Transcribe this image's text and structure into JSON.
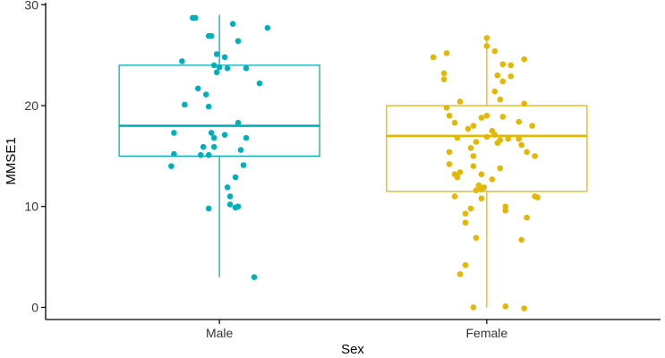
{
  "chart_data": {
    "type": "boxplot",
    "title": "",
    "xlabel": "Sex",
    "ylabel": "MMSE1",
    "ylim": [
      -1.2,
      30.2
    ],
    "yticks": [
      0,
      10,
      20,
      30
    ],
    "grid": false,
    "legend": "none",
    "categories": [
      "Male",
      "Female"
    ],
    "colors": [
      "#00b0bd",
      "#e6b700"
    ],
    "groups": [
      {
        "name": "Male",
        "whisker_low": 3,
        "q1": 15,
        "median": 18,
        "q3": 24,
        "whisker_high": 29,
        "outliers": [],
        "points": [
          {
            "dx": -0.1,
            "y": 28.7
          },
          {
            "dx": -0.09,
            "y": 28.7
          },
          {
            "dx": 0.05,
            "y": 28.1
          },
          {
            "dx": 0.18,
            "y": 27.7
          },
          {
            "dx": -0.04,
            "y": 26.9
          },
          {
            "dx": -0.03,
            "y": 26.9
          },
          {
            "dx": 0.07,
            "y": 26.4
          },
          {
            "dx": -0.14,
            "y": 24.4
          },
          {
            "dx": 0.02,
            "y": 24.8
          },
          {
            "dx": -0.02,
            "y": 24.0
          },
          {
            "dx": -0.01,
            "y": 25.1
          },
          {
            "dx": 0.0,
            "y": 23.8
          },
          {
            "dx": 0.03,
            "y": 23.7
          },
          {
            "dx": 0.1,
            "y": 23.7
          },
          {
            "dx": -0.01,
            "y": 23.3
          },
          {
            "dx": 0.15,
            "y": 22.2
          },
          {
            "dx": -0.08,
            "y": 21.7
          },
          {
            "dx": -0.05,
            "y": 21.1
          },
          {
            "dx": -0.13,
            "y": 20.1
          },
          {
            "dx": -0.04,
            "y": 19.9
          },
          {
            "dx": 0.07,
            "y": 18.3
          },
          {
            "dx": -0.17,
            "y": 17.3
          },
          {
            "dx": -0.03,
            "y": 17.3
          },
          {
            "dx": 0.02,
            "y": 17.1
          },
          {
            "dx": 0.1,
            "y": 16.8
          },
          {
            "dx": -0.02,
            "y": 16.8
          },
          {
            "dx": -0.06,
            "y": 15.9
          },
          {
            "dx": -0.02,
            "y": 15.9
          },
          {
            "dx": 0.08,
            "y": 15.6
          },
          {
            "dx": -0.17,
            "y": 15.2
          },
          {
            "dx": -0.07,
            "y": 15.1
          },
          {
            "dx": -0.04,
            "y": 15.1
          },
          {
            "dx": -0.18,
            "y": 14.0
          },
          {
            "dx": 0.09,
            "y": 14.1
          },
          {
            "dx": 0.06,
            "y": 12.9
          },
          {
            "dx": 0.03,
            "y": 11.9
          },
          {
            "dx": 0.04,
            "y": 11.0
          },
          {
            "dx": 0.04,
            "y": 10.2
          },
          {
            "dx": 0.06,
            "y": 9.9
          },
          {
            "dx": 0.07,
            "y": 10.0
          },
          {
            "dx": -0.04,
            "y": 9.8
          },
          {
            "dx": 0.13,
            "y": 3.0
          }
        ]
      },
      {
        "name": "Female",
        "whisker_low": 0,
        "q1": 11.5,
        "median": 17,
        "q3": 20,
        "whisker_high": 26.6,
        "outliers": [],
        "points": [
          {
            "dx": 0.0,
            "y": 26.7
          },
          {
            "dx": 0.0,
            "y": 25.9
          },
          {
            "dx": -0.15,
            "y": 25.2
          },
          {
            "dx": 0.03,
            "y": 25.4
          },
          {
            "dx": -0.2,
            "y": 24.8
          },
          {
            "dx": 0.14,
            "y": 24.6
          },
          {
            "dx": 0.06,
            "y": 24.1
          },
          {
            "dx": 0.09,
            "y": 24.0
          },
          {
            "dx": -0.16,
            "y": 23.2
          },
          {
            "dx": 0.04,
            "y": 23.0
          },
          {
            "dx": -0.16,
            "y": 22.6
          },
          {
            "dx": 0.06,
            "y": 22.4
          },
          {
            "dx": 0.09,
            "y": 22.9
          },
          {
            "dx": 0.03,
            "y": 21.4
          },
          {
            "dx": -0.1,
            "y": 20.4
          },
          {
            "dx": 0.05,
            "y": 20.6
          },
          {
            "dx": 0.14,
            "y": 20.2
          },
          {
            "dx": -0.15,
            "y": 19.8
          },
          {
            "dx": -0.14,
            "y": 19.0
          },
          {
            "dx": -0.02,
            "y": 18.8
          },
          {
            "dx": 0.0,
            "y": 19.0
          },
          {
            "dx": 0.06,
            "y": 18.9
          },
          {
            "dx": -0.12,
            "y": 18.3
          },
          {
            "dx": -0.05,
            "y": 18.0
          },
          {
            "dx": 0.12,
            "y": 18.4
          },
          {
            "dx": 0.17,
            "y": 18.0
          },
          {
            "dx": -0.07,
            "y": 17.7
          },
          {
            "dx": 0.02,
            "y": 17.5
          },
          {
            "dx": 0.03,
            "y": 17.1
          },
          {
            "dx": -0.11,
            "y": 16.8
          },
          {
            "dx": 0.0,
            "y": 16.9
          },
          {
            "dx": 0.05,
            "y": 16.6
          },
          {
            "dx": 0.08,
            "y": 16.7
          },
          {
            "dx": 0.12,
            "y": 16.7
          },
          {
            "dx": -0.04,
            "y": 16.4
          },
          {
            "dx": 0.04,
            "y": 16.3
          },
          {
            "dx": 0.13,
            "y": 16.1
          },
          {
            "dx": -0.06,
            "y": 15.8
          },
          {
            "dx": 0.15,
            "y": 15.4
          },
          {
            "dx": 0.18,
            "y": 15.0
          },
          {
            "dx": -0.14,
            "y": 15.4
          },
          {
            "dx": -0.05,
            "y": 15.0
          },
          {
            "dx": -0.05,
            "y": 14.0
          },
          {
            "dx": -0.14,
            "y": 14.2
          },
          {
            "dx": 0.05,
            "y": 13.8
          },
          {
            "dx": -0.1,
            "y": 13.4
          },
          {
            "dx": -0.12,
            "y": 13.2
          },
          {
            "dx": -0.02,
            "y": 13.2
          },
          {
            "dx": 0.02,
            "y": 12.7
          },
          {
            "dx": -0.11,
            "y": 12.9
          },
          {
            "dx": -0.03,
            "y": 12.1
          },
          {
            "dx": -0.02,
            "y": 11.7
          },
          {
            "dx": -0.04,
            "y": 11.6
          },
          {
            "dx": -0.01,
            "y": 11.9
          },
          {
            "dx": 0.18,
            "y": 11.0
          },
          {
            "dx": 0.19,
            "y": 10.9
          },
          {
            "dx": -0.12,
            "y": 11.0
          },
          {
            "dx": -0.02,
            "y": 10.8
          },
          {
            "dx": 0.07,
            "y": 10.0
          },
          {
            "dx": -0.06,
            "y": 9.8
          },
          {
            "dx": 0.07,
            "y": 9.6
          },
          {
            "dx": -0.08,
            "y": 9.3
          },
          {
            "dx": 0.15,
            "y": 8.9
          },
          {
            "dx": -0.08,
            "y": 8.4
          },
          {
            "dx": -0.04,
            "y": 6.9
          },
          {
            "dx": 0.13,
            "y": 6.7
          },
          {
            "dx": -0.08,
            "y": 4.2
          },
          {
            "dx": -0.1,
            "y": 3.3
          },
          {
            "dx": -0.05,
            "y": 0.0
          },
          {
            "dx": 0.07,
            "y": 0.1
          },
          {
            "dx": 0.14,
            "y": -0.1
          }
        ]
      }
    ]
  }
}
